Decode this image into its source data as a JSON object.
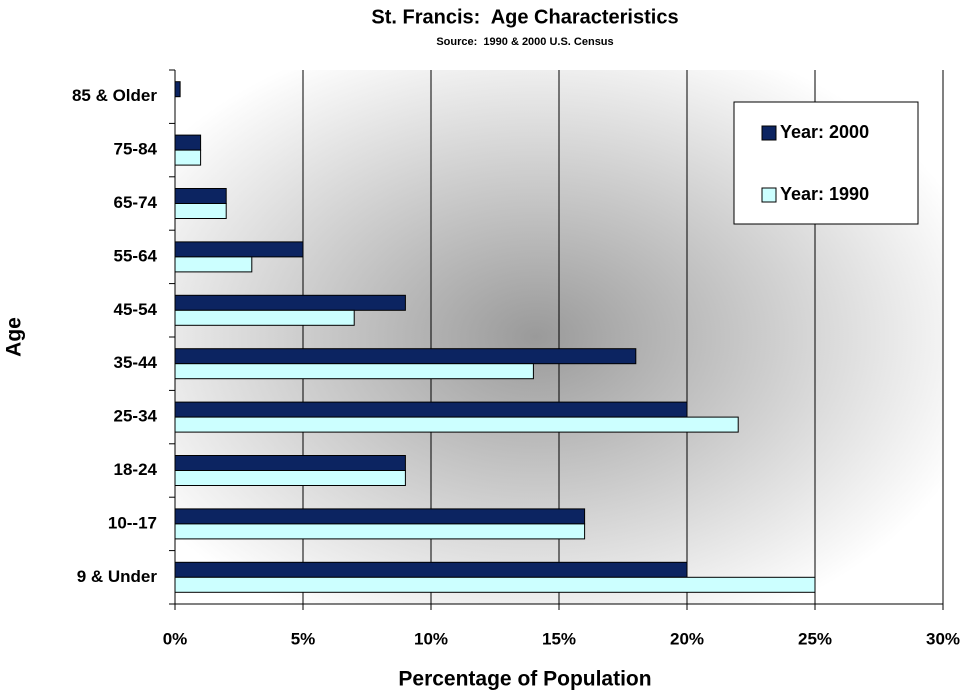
{
  "chart_data": {
    "type": "barh",
    "title": "St. Francis:  Age Characteristics",
    "subtitle": "Source:  1990 & 2000 U.S. Census",
    "x_label": "Percentage of Population",
    "y_label": "Age",
    "categories": [
      "85 & Older",
      "75-84",
      "65-74",
      "55-64",
      "45-54",
      "35-44",
      "25-34",
      "18-24",
      "10--17",
      "9 & Under"
    ],
    "series": [
      {
        "name": "Year: 2000",
        "color": "#0c2461",
        "values": [
          0.2,
          1,
          2,
          5,
          9,
          18,
          20,
          9,
          16,
          20
        ]
      },
      {
        "name": "Year: 1990",
        "color": "#ccffff",
        "values": [
          0,
          1,
          2,
          3,
          7,
          14,
          22,
          9,
          16,
          25
        ]
      }
    ],
    "xlim": [
      0,
      30
    ],
    "xticks": [
      {
        "value": 0,
        "label": "0%"
      },
      {
        "value": 5,
        "label": "5%"
      },
      {
        "value": 10,
        "label": "10%"
      },
      {
        "value": 15,
        "label": "15%"
      },
      {
        "value": 20,
        "label": "20%"
      },
      {
        "value": 25,
        "label": "25%"
      },
      {
        "value": 30,
        "label": "30%"
      }
    ],
    "grid": true,
    "legend": "upper right"
  }
}
